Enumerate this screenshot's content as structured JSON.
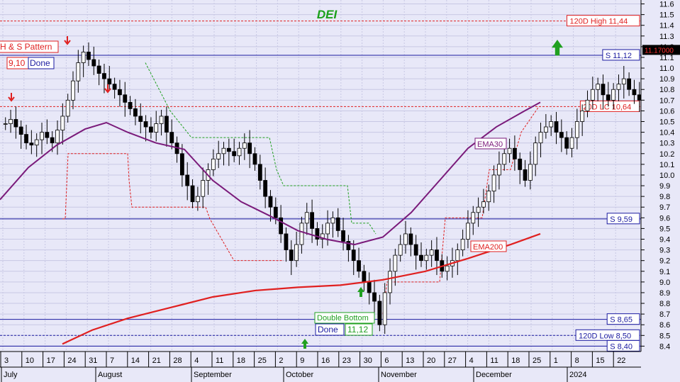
{
  "chart_data": {
    "type": "candlestick",
    "title": "DEI",
    "y_ticks": [
      8.4,
      8.5,
      8.6,
      8.7,
      8.8,
      8.9,
      9.0,
      9.1,
      9.2,
      9.3,
      9.4,
      9.5,
      9.6,
      9.7,
      9.8,
      9.9,
      10.0,
      10.1,
      10.2,
      10.3,
      10.4,
      10.5,
      10.6,
      10.7,
      10.8,
      10.9,
      11.0,
      11.1,
      11.2,
      11.3,
      11.4,
      11.5,
      11.6
    ],
    "ylim": [
      8.33,
      11.68
    ],
    "x_day_ticks": [
      "3",
      "10",
      "17",
      "24",
      "31",
      "7",
      "14",
      "21",
      "28",
      "4",
      "11",
      "18",
      "25",
      "2",
      "9",
      "16",
      "23",
      "30",
      "6",
      "13",
      "20",
      "27",
      "4",
      "11",
      "18",
      "25",
      "1",
      "8",
      "15",
      "22"
    ],
    "x_month_labels": [
      "July",
      "August",
      "September",
      "October",
      "November",
      "December",
      "2024"
    ],
    "last_price": "11.17000",
    "horizontal_levels": [
      {
        "label": "120D High 11,44",
        "value": 11.44,
        "style": "dashed",
        "color": "#e02020"
      },
      {
        "label": "S 11,12",
        "value": 11.12,
        "style": "solid",
        "color": "#1a1aa0"
      },
      {
        "label": "20D LC 10,64",
        "value": 10.64,
        "style": "dashed",
        "color": "#e02020"
      },
      {
        "label": "S 9,59",
        "value": 9.59,
        "style": "solid",
        "color": "#1a1aa0"
      },
      {
        "label": "S 8,65",
        "value": 8.65,
        "style": "solid",
        "color": "#1a1aa0"
      },
      {
        "label": "120D Low 8,50",
        "value": 8.5,
        "style": "dashed",
        "color": "#1a1aa0"
      },
      {
        "label": "S 8,40",
        "value": 8.4,
        "style": "solid",
        "color": "#1a1aa0"
      }
    ],
    "overlays": [
      {
        "name": "EMA30",
        "color": "#7a1a7a"
      },
      {
        "name": "EMA200",
        "color": "#e02020"
      }
    ],
    "patterns": [
      {
        "name": "H & S Pattern",
        "value": "9,10",
        "status": "Done"
      },
      {
        "name": "Double Bottom",
        "value": "11,12",
        "status": "Done"
      }
    ],
    "colors": {
      "background": "#e8e8f8",
      "up": "#ffffff",
      "down": "#000000",
      "support": "#1a1aa0",
      "resistance": "#e02020",
      "ema30": "#7a1a7a",
      "ema200": "#e02020",
      "trail_green": "#20a020",
      "arrow_up": "#20a020",
      "arrow_down": "#e02020"
    }
  }
}
